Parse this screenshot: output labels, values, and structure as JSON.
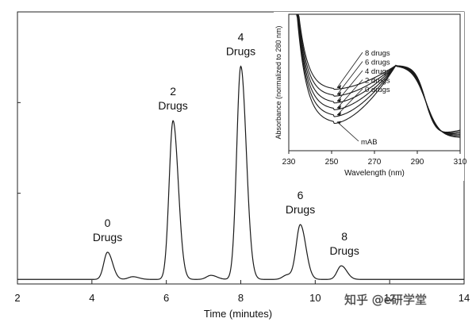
{
  "chart_data": [
    {
      "type": "line",
      "title": "",
      "xlabel": "Time (minutes)",
      "ylabel": "",
      "xlim": [
        2,
        14
      ],
      "xticks": [
        2,
        4,
        6,
        8,
        10,
        12,
        14
      ],
      "tick_labels": [
        "2",
        "4",
        "6",
        "8",
        "10",
        "12",
        "14"
      ],
      "ylim": [
        0,
        1.2
      ],
      "grid": false,
      "baseline": 0.02,
      "peaks": [
        {
          "x": 4.42,
          "y": 0.12,
          "width": 0.1
        },
        {
          "x": 5.1,
          "y": 0.012,
          "width": 0.12
        },
        {
          "x": 6.18,
          "y": 0.7,
          "width": 0.105
        },
        {
          "x": 7.2,
          "y": 0.018,
          "width": 0.12
        },
        {
          "x": 8.0,
          "y": 0.94,
          "width": 0.11
        },
        {
          "x": 9.25,
          "y": 0.02,
          "width": 0.12
        },
        {
          "x": 9.6,
          "y": 0.24,
          "width": 0.11
        },
        {
          "x": 10.7,
          "y": 0.06,
          "width": 0.11
        }
      ],
      "annotations": [
        {
          "x": 4.42,
          "y": 0.12,
          "count": "0",
          "text": "Drugs"
        },
        {
          "x": 6.18,
          "y": 0.7,
          "count": "2",
          "text": "Drugs"
        },
        {
          "x": 8.0,
          "y": 0.94,
          "count": "4",
          "text": "Drugs"
        },
        {
          "x": 9.6,
          "y": 0.24,
          "count": "6",
          "text": "Drugs"
        },
        {
          "x": 10.7,
          "y": 0.06,
          "count": "8",
          "text": "Drugs"
        }
      ]
    },
    {
      "type": "line",
      "title": "",
      "xlabel": "Wavelength (nm)",
      "ylabel": "Absorbance (normalized to 280 nm)",
      "xlim": [
        230,
        310
      ],
      "xticks": [
        230,
        250,
        270,
        290,
        310
      ],
      "tick_labels": [
        "230",
        "250",
        "270",
        "290",
        "310"
      ],
      "ylim": [
        0,
        1.6
      ],
      "grid": false,
      "series": [
        {
          "name": "8 drugs",
          "min_value": 0.72
        },
        {
          "name": "6 drugs",
          "min_value": 0.64
        },
        {
          "name": "4 drugs",
          "min_value": 0.56
        },
        {
          "name": "2 drugs",
          "min_value": 0.48
        },
        {
          "name": "0 drugs",
          "min_value": 0.4
        },
        {
          "name": "mAB",
          "min_value": 0.32
        }
      ],
      "legend_labels": [
        "8 drugs",
        "6 drugs",
        "4 drugs",
        "2 drugs",
        "0 drugs"
      ],
      "callout": "mAB"
    }
  ],
  "watermark": {
    "text": "知乎 @e研学堂"
  },
  "colors": {
    "line": "#1a1a1a",
    "axis": "#222222",
    "watermark": "#ffffff"
  }
}
